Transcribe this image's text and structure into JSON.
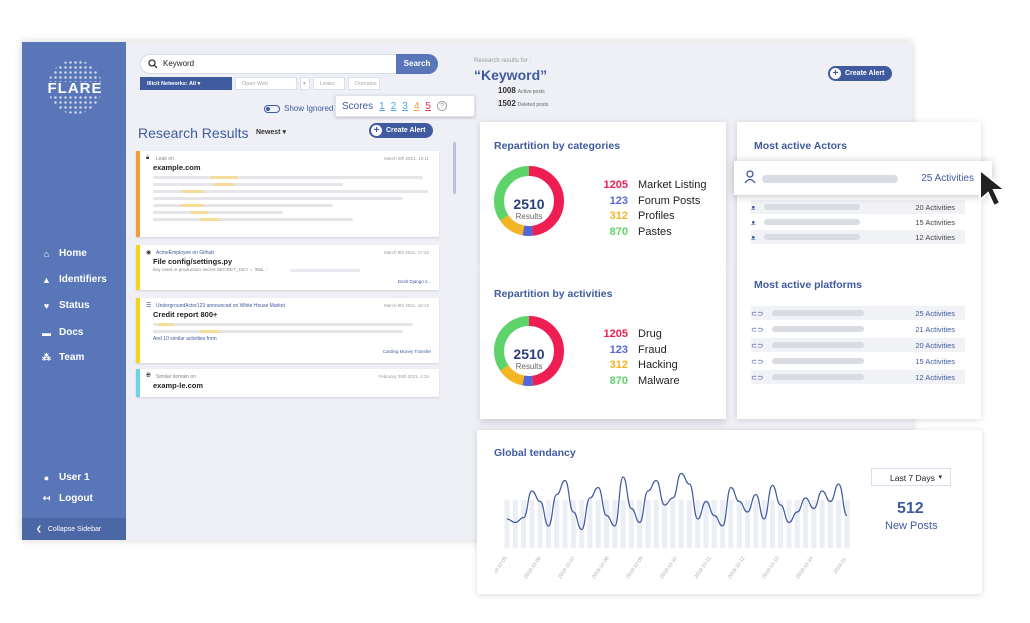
{
  "sidebar": {
    "logo": "FLARE",
    "items": [
      {
        "label": "Home",
        "icon": "home-icon",
        "glyph": "⌂"
      },
      {
        "label": "Identifiers",
        "icon": "bell-icon",
        "glyph": "▲"
      },
      {
        "label": "Status",
        "icon": "heart-icon",
        "glyph": "♥"
      },
      {
        "label": "Docs",
        "icon": "document-icon",
        "glyph": "▬"
      },
      {
        "label": "Team",
        "icon": "team-icon",
        "glyph": "⁂"
      }
    ],
    "user": "User 1",
    "logout": "Logout",
    "collapse": "Collapse Sidebar"
  },
  "search": {
    "value": "Keyword",
    "button": "Search",
    "filters": [
      "Illicit Networks: All",
      "Open Web",
      "Leaks",
      "Domains"
    ],
    "show_ignored": "Show Ignored"
  },
  "results": {
    "title": "Research Results",
    "sort": "Newest ▾",
    "create_alert": "Create Alert",
    "cards": [
      {
        "meta": "Leak on",
        "title": "example.com",
        "date": "March 9th 2021, 15:11",
        "color": "#f39c34"
      },
      {
        "meta": "AcmeEmployee on Github",
        "title": "File config/settings.py",
        "date": "March 9th 2021, 17:32",
        "snippet": "key used in production secret SECRET_KEY = '38&...'",
        "tags": "Dosh Django s...",
        "color": "#f5d31b"
      },
      {
        "meta": "UndergroundActor123 announced on White House Market",
        "title": "Credit report 800+",
        "date": "March 9th 2021, 16:12",
        "similar": "And 10 similar activities from",
        "tags": "Carding   Money Transfer",
        "color": "#f5d31b"
      },
      {
        "meta": "Similar domain on",
        "title": "examp-le.com",
        "date": "February 25th 2021, 4:34",
        "color": "#6cd3e8"
      }
    ]
  },
  "scores": {
    "label": "Scores",
    "values": [
      {
        "n": "1",
        "color": "#4ba3e8"
      },
      {
        "n": "2",
        "color": "#4ba3e8"
      },
      {
        "n": "3",
        "color": "#4ba3e8"
      },
      {
        "n": "4",
        "color": "#f39c34"
      },
      {
        "n": "5",
        "color": "#e8364f"
      }
    ],
    "help": "?"
  },
  "research": {
    "for_label": "Research results for :",
    "keyword": "“Keyword”",
    "active_count": "1008",
    "active_label": "Active posts",
    "deleted_count": "1502",
    "deleted_label": "Deleted posts",
    "create_alert": "Create Alert"
  },
  "categories": {
    "title": "Repartition by categories",
    "total": "2510",
    "total_label": "Results",
    "items": [
      {
        "value": "1205",
        "label": "Market Listing",
        "color": "#ee1d52"
      },
      {
        "value": "123",
        "label": "Forum Posts",
        "color": "#5567d6"
      },
      {
        "value": "312",
        "label": "Profiles",
        "color": "#f4b525"
      },
      {
        "value": "870",
        "label": "Pastes",
        "color": "#5fd36b"
      }
    ]
  },
  "activities": {
    "title": "Repartition by activities",
    "total": "2510",
    "total_label": "Results",
    "items": [
      {
        "value": "1205",
        "label": "Drug",
        "color": "#ee1d52"
      },
      {
        "value": "123",
        "label": "Fraud",
        "color": "#5567d6"
      },
      {
        "value": "312",
        "label": "Hacking",
        "color": "#f4b525"
      },
      {
        "value": "870",
        "label": "Malware",
        "color": "#5fd36b"
      }
    ]
  },
  "actors": {
    "title": "Most active Actors",
    "highlight": "25 Activities",
    "rows": [
      "20 Activities",
      "15 Activities",
      "12 Activities"
    ]
  },
  "platforms": {
    "title": "Most active platforms",
    "rows": [
      "25 Activities",
      "21 Activities",
      "20 Activities",
      "15 Activities",
      "12 Activities"
    ]
  },
  "tendancy": {
    "title": "Global tendancy",
    "range": "Last 7 Days",
    "count": "512",
    "count_label": "New Posts",
    "x_labels": [
      "2019-10-05",
      "2019-10-06",
      "2019-10-07",
      "2019-10-08",
      "2019-10-09",
      "2019-10-10",
      "2019-10-11",
      "2019-10-12",
      "2019-10-13",
      "2019-10-14",
      "2019-11-"
    ],
    "series": [
      0.3,
      0.25,
      0.32,
      0.7,
      0.55,
      0.2,
      0.65,
      0.85,
      0.4,
      0.15,
      0.6,
      0.75,
      0.35,
      0.2,
      0.9,
      0.45,
      0.25,
      0.7,
      0.85,
      0.5,
      0.6,
      0.95,
      0.8,
      0.3,
      0.55,
      0.35,
      0.2,
      0.75,
      0.55,
      0.4,
      0.65,
      0.3,
      0.78,
      0.5,
      0.25,
      0.4,
      0.6,
      0.45,
      0.7,
      0.55,
      0.8,
      0.35
    ]
  }
}
